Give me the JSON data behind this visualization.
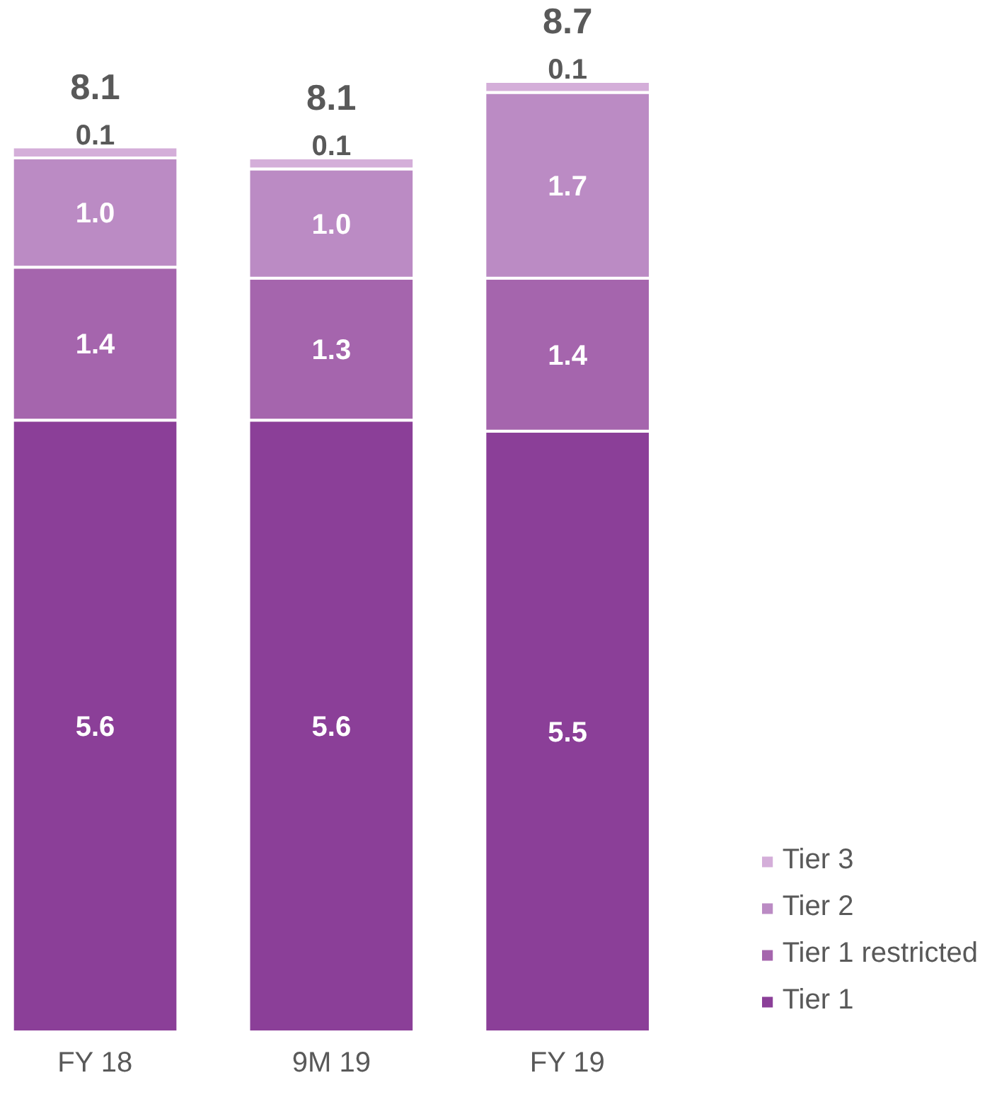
{
  "chart_data": {
    "type": "bar",
    "stacked": true,
    "categories": [
      "FY 18",
      "9M 19",
      "FY 19"
    ],
    "series": [
      {
        "name": "Tier 1",
        "color": "#8b3f98",
        "values": [
          5.6,
          5.6,
          5.5
        ],
        "value_labels": [
          "5.6",
          "5.6",
          "5.5"
        ]
      },
      {
        "name": "Tier 1 restricted",
        "color": "#a565ad",
        "values": [
          1.4,
          1.3,
          1.4
        ],
        "value_labels": [
          "1.4",
          "1.3",
          "1.4"
        ]
      },
      {
        "name": "Tier 2",
        "color": "#bb8bc4",
        "values": [
          1.0,
          1.0,
          1.7
        ],
        "value_labels": [
          "1.0",
          "1.0",
          "1.7"
        ]
      },
      {
        "name": "Tier 3",
        "color": "#d4aed9",
        "values": [
          0.1,
          0.1,
          0.1
        ],
        "value_labels": [
          "0.1",
          "0.1",
          "0.1"
        ]
      }
    ],
    "totals": [
      "8.1",
      "8.1",
      "8.7"
    ],
    "legend": "bottom right",
    "grid": false
  }
}
